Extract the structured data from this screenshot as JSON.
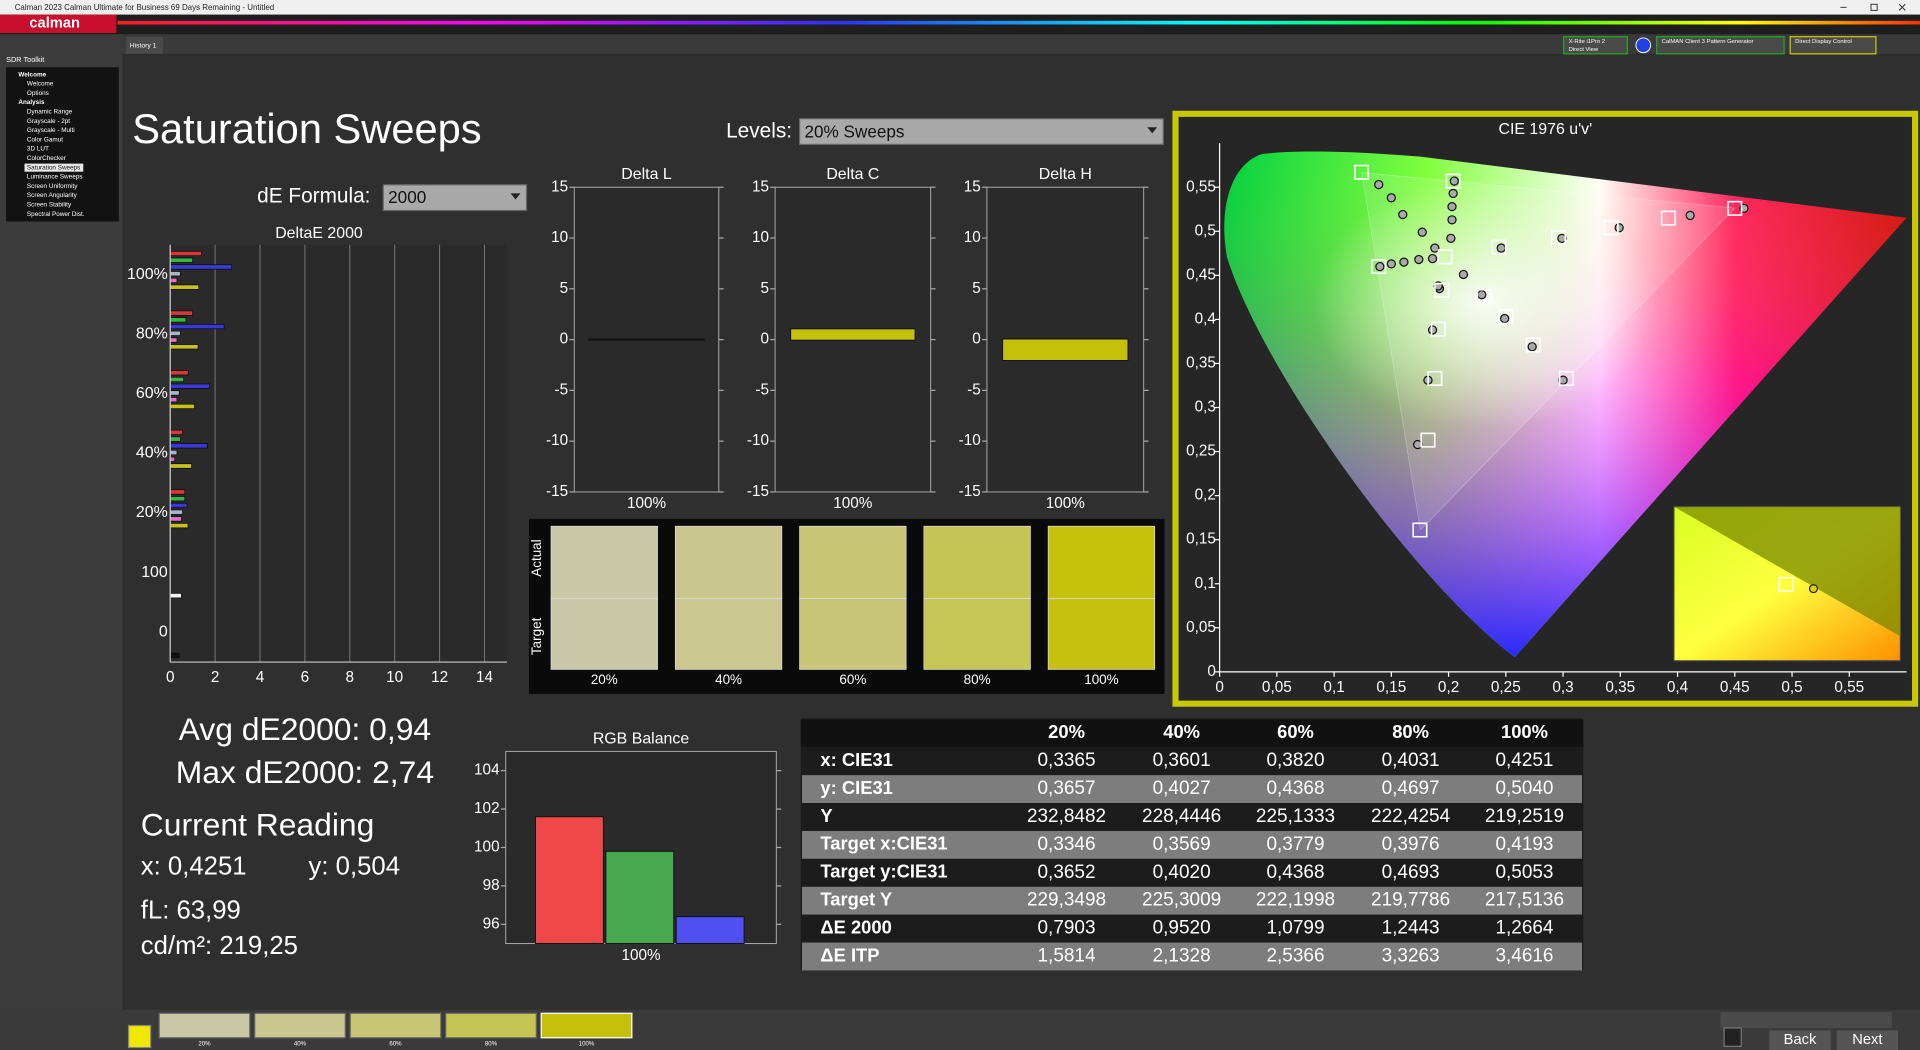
{
  "window": {
    "title": "Calman 2023 Calman Ultimate for Business 69 Days Remaining - Untitled"
  },
  "app": {
    "logo": "calman"
  },
  "tabs": [
    "History 1"
  ],
  "toolbar": {
    "meter": "X-Rite i1Pro 2",
    "meter_mode": "Direct View",
    "pattern_generator": "CalMAN Client 3 Pattern Generator",
    "display_control": "Direct Display Control"
  },
  "sidebar": {
    "title": "SDR Toolkit",
    "items": [
      {
        "label": "Welcome",
        "level": 0
      },
      {
        "label": "Welcome",
        "level": 1
      },
      {
        "label": "Options",
        "level": 1
      },
      {
        "label": "Analysis",
        "level": 0
      },
      {
        "label": "Dynamic Range",
        "level": 1
      },
      {
        "label": "Grayscale - 2pt",
        "level": 1
      },
      {
        "label": "Grayscale - Multi",
        "level": 1
      },
      {
        "label": "Color Gamut",
        "level": 1
      },
      {
        "label": "3D LUT",
        "level": 1
      },
      {
        "label": "ColorChecker",
        "level": 1
      },
      {
        "label": "Saturation Sweeps",
        "level": 1,
        "selected": true
      },
      {
        "label": "Luminance Sweeps",
        "level": 1
      },
      {
        "label": "Screen Uniformity",
        "level": 1
      },
      {
        "label": "Screen Angularity",
        "level": 1
      },
      {
        "label": "Screen Stability",
        "level": 1
      },
      {
        "label": "Spectral Power Dist.",
        "level": 1
      }
    ]
  },
  "page": {
    "title": "Saturation Sweeps",
    "levels_label": "Levels:",
    "levels_value": "20% Sweeps",
    "formula_label": "dE Formula:",
    "formula_value": "2000"
  },
  "deltae_chart": {
    "type": "bar",
    "orientation": "horizontal",
    "title": "DeltaE 2000",
    "categories": [
      "100%",
      "80%",
      "60%",
      "40%",
      "20%",
      "100",
      "0"
    ],
    "series": [
      {
        "color": "#d23a3a",
        "values": [
          1.4,
          1.0,
          0.8,
          0.55,
          0.65,
          null,
          null
        ]
      },
      {
        "color": "#3cb44a",
        "values": [
          1.0,
          0.7,
          0.6,
          0.45,
          0.65,
          null,
          null
        ]
      },
      {
        "color": "#3a3ad2",
        "values": [
          2.74,
          2.4,
          1.75,
          1.65,
          0.75,
          null,
          null
        ]
      },
      {
        "color": "#a8b4c8",
        "values": [
          0.45,
          0.45,
          0.4,
          0.3,
          0.55,
          null,
          null
        ]
      },
      {
        "color": "#e070c8",
        "values": [
          0.3,
          0.3,
          0.3,
          0.2,
          0.5,
          null,
          null
        ]
      },
      {
        "color": "#c8c020",
        "values": [
          1.27,
          1.24,
          1.08,
          0.95,
          0.79,
          null,
          null
        ]
      },
      {
        "color": "#f4f4f4",
        "values": [
          null,
          null,
          null,
          null,
          null,
          0.5,
          null
        ]
      },
      {
        "color": "#111111",
        "values": [
          null,
          null,
          null,
          null,
          null,
          null,
          0.4
        ]
      }
    ],
    "xlim": [
      0,
      15
    ],
    "xticks": [
      0,
      2,
      4,
      6,
      8,
      10,
      12,
      14
    ],
    "grid": true
  },
  "delta_charts": [
    {
      "type": "bar",
      "title": "Delta L",
      "categories": [
        "100%"
      ],
      "values": [
        0
      ],
      "color": "#222222",
      "ylim": [
        -15,
        15
      ],
      "yticks": [
        -15,
        -10,
        -5,
        0,
        5,
        10,
        15
      ]
    },
    {
      "type": "bar",
      "title": "Delta C",
      "categories": [
        "100%"
      ],
      "values": [
        1.0
      ],
      "color": "#c4c00c",
      "ylim": [
        -15,
        15
      ],
      "yticks": [
        -15,
        -10,
        -5,
        0,
        5,
        10,
        15
      ]
    },
    {
      "type": "bar",
      "title": "Delta H",
      "categories": [
        "100%"
      ],
      "values": [
        -2.0
      ],
      "color": "#c4c00c",
      "ylim": [
        -15,
        15
      ],
      "yticks": [
        -15,
        -10,
        -5,
        0,
        5,
        10,
        15
      ]
    }
  ],
  "swatches": {
    "actual_label": "Actual",
    "target_label": "Target",
    "items": [
      {
        "label": "20%",
        "actual": "#c8c7a6",
        "target": "#c9c8a8"
      },
      {
        "label": "40%",
        "actual": "#c9c78e",
        "target": "#cac890"
      },
      {
        "label": "60%",
        "actual": "#c8c575",
        "target": "#c9c677"
      },
      {
        "label": "80%",
        "actual": "#c6c452",
        "target": "#c7c554"
      },
      {
        "label": "100%",
        "actual": "#c4c00c",
        "target": "#c5c10e"
      }
    ]
  },
  "summary": {
    "avg": "Avg dE2000: 0,94",
    "max": "Max dE2000: 2,74",
    "reading_title": "Current Reading",
    "x": "x: 0,4251",
    "y": "y: 0,504",
    "fl": "fL: 63,99",
    "cdm2": "cd/m²: 219,25"
  },
  "rgb_chart": {
    "type": "bar",
    "title": "RGB Balance",
    "categories": [
      "100%"
    ],
    "series": [
      {
        "color": "#f04848",
        "values": [
          101.6
        ]
      },
      {
        "color": "#48a850",
        "values": [
          99.8
        ]
      },
      {
        "color": "#5050f0",
        "values": [
          96.4
        ]
      }
    ],
    "ylim": [
      95,
      105
    ],
    "yticks": [
      96,
      98,
      100,
      102,
      104
    ]
  },
  "table": {
    "header": [
      "20%",
      "40%",
      "60%",
      "80%",
      "100%"
    ],
    "rows": [
      {
        "label": "x: CIE31",
        "values": [
          "0,3365",
          "0,3601",
          "0,3820",
          "0,4031",
          "0,4251"
        ]
      },
      {
        "label": "y: CIE31",
        "values": [
          "0,3657",
          "0,4027",
          "0,4368",
          "0,4697",
          "0,5040"
        ]
      },
      {
        "label": "Y",
        "values": [
          "232,8482",
          "228,4446",
          "225,1333",
          "222,4254",
          "219,2519"
        ]
      },
      {
        "label": "Target x:CIE31",
        "values": [
          "0,3346",
          "0,3569",
          "0,3779",
          "0,3976",
          "0,4193"
        ]
      },
      {
        "label": "Target y:CIE31",
        "values": [
          "0,3652",
          "0,4020",
          "0,4368",
          "0,4693",
          "0,5053"
        ]
      },
      {
        "label": "Target Y",
        "values": [
          "229,3498",
          "225,3009",
          "222,1998",
          "219,7786",
          "217,5136"
        ]
      },
      {
        "label": "ΔE 2000",
        "values": [
          "0,7903",
          "0,9520",
          "1,0799",
          "1,2443",
          "1,2664"
        ]
      },
      {
        "label": "ΔE ITP",
        "values": [
          "1,5814",
          "2,1328",
          "2,5366",
          "3,3263",
          "3,4616"
        ]
      }
    ]
  },
  "cie_chart": {
    "type": "scatter",
    "title": "CIE 1976 u'v'",
    "xlim": [
      0,
      0.6
    ],
    "ylim": [
      0,
      0.6
    ],
    "xticks": [
      0,
      {
        "value": 0.05,
        "label": "0,05"
      },
      {
        "value": 0.1,
        "label": "0,1"
      },
      {
        "value": 0.15,
        "label": "0,15"
      },
      {
        "value": 0.2,
        "label": "0,2"
      },
      {
        "value": 0.25,
        "label": "0,25"
      },
      {
        "value": 0.3,
        "label": "0,3"
      },
      {
        "value": 0.35,
        "label": "0,35"
      },
      {
        "value": 0.4,
        "label": "0,4"
      },
      {
        "value": 0.45,
        "label": "0,45"
      },
      {
        "value": 0.5,
        "label": "0,5"
      },
      {
        "value": 0.55,
        "label": "0,55"
      }
    ],
    "yticks": [
      0,
      {
        "value": 0.05,
        "label": "0,05"
      },
      {
        "value": 0.1,
        "label": "0,1"
      },
      {
        "value": 0.15,
        "label": "0,15"
      },
      {
        "value": 0.2,
        "label": "0,2"
      },
      {
        "value": 0.25,
        "label": "0,25"
      },
      {
        "value": 0.3,
        "label": "0,3"
      },
      {
        "value": 0.35,
        "label": "0,35"
      },
      {
        "value": 0.4,
        "label": "0,4"
      },
      {
        "value": 0.45,
        "label": "0,45"
      },
      {
        "value": 0.5,
        "label": "0,5"
      },
      {
        "value": 0.55,
        "label": "0,55"
      }
    ],
    "targets": {
      "x": [
        0.124,
        0.204,
        0.45,
        0.392,
        0.342,
        0.296,
        0.244,
        0.197,
        0.139,
        0.175,
        0.182,
        0.188,
        0.191,
        0.194,
        0.303,
        0.274,
        0.25,
        0.231
      ],
      "y": [
        0.567,
        0.557,
        0.526,
        0.515,
        0.504,
        0.493,
        0.482,
        0.471,
        0.46,
        0.161,
        0.263,
        0.333,
        0.389,
        0.433,
        0.333,
        0.371,
        0.403,
        0.426
      ]
    },
    "actuals": {
      "x": [
        0.139,
        0.15,
        0.16,
        0.177,
        0.188,
        0.205,
        0.204,
        0.203,
        0.203,
        0.202,
        0.458,
        0.411,
        0.349,
        0.299,
        0.246,
        0.14,
        0.15,
        0.161,
        0.174,
        0.186,
        0.173,
        0.182,
        0.186,
        0.192,
        0.3,
        0.273,
        0.249,
        0.229,
        0.213,
        0.191
      ],
      "y": [
        0.553,
        0.538,
        0.519,
        0.499,
        0.481,
        0.557,
        0.543,
        0.528,
        0.513,
        0.492,
        0.526,
        0.518,
        0.504,
        0.492,
        0.481,
        0.46,
        0.463,
        0.465,
        0.468,
        0.469,
        0.258,
        0.331,
        0.388,
        0.435,
        0.331,
        0.369,
        0.401,
        0.428,
        0.451,
        0.438
      ]
    }
  },
  "footer": {
    "labels": [
      "20%",
      "40%",
      "60%",
      "80%",
      "100%"
    ],
    "colors": [
      "#c8c7a6",
      "#c9c78e",
      "#c8c575",
      "#c6c452",
      "#c4c00c"
    ],
    "back": "Back",
    "next": "Next"
  }
}
